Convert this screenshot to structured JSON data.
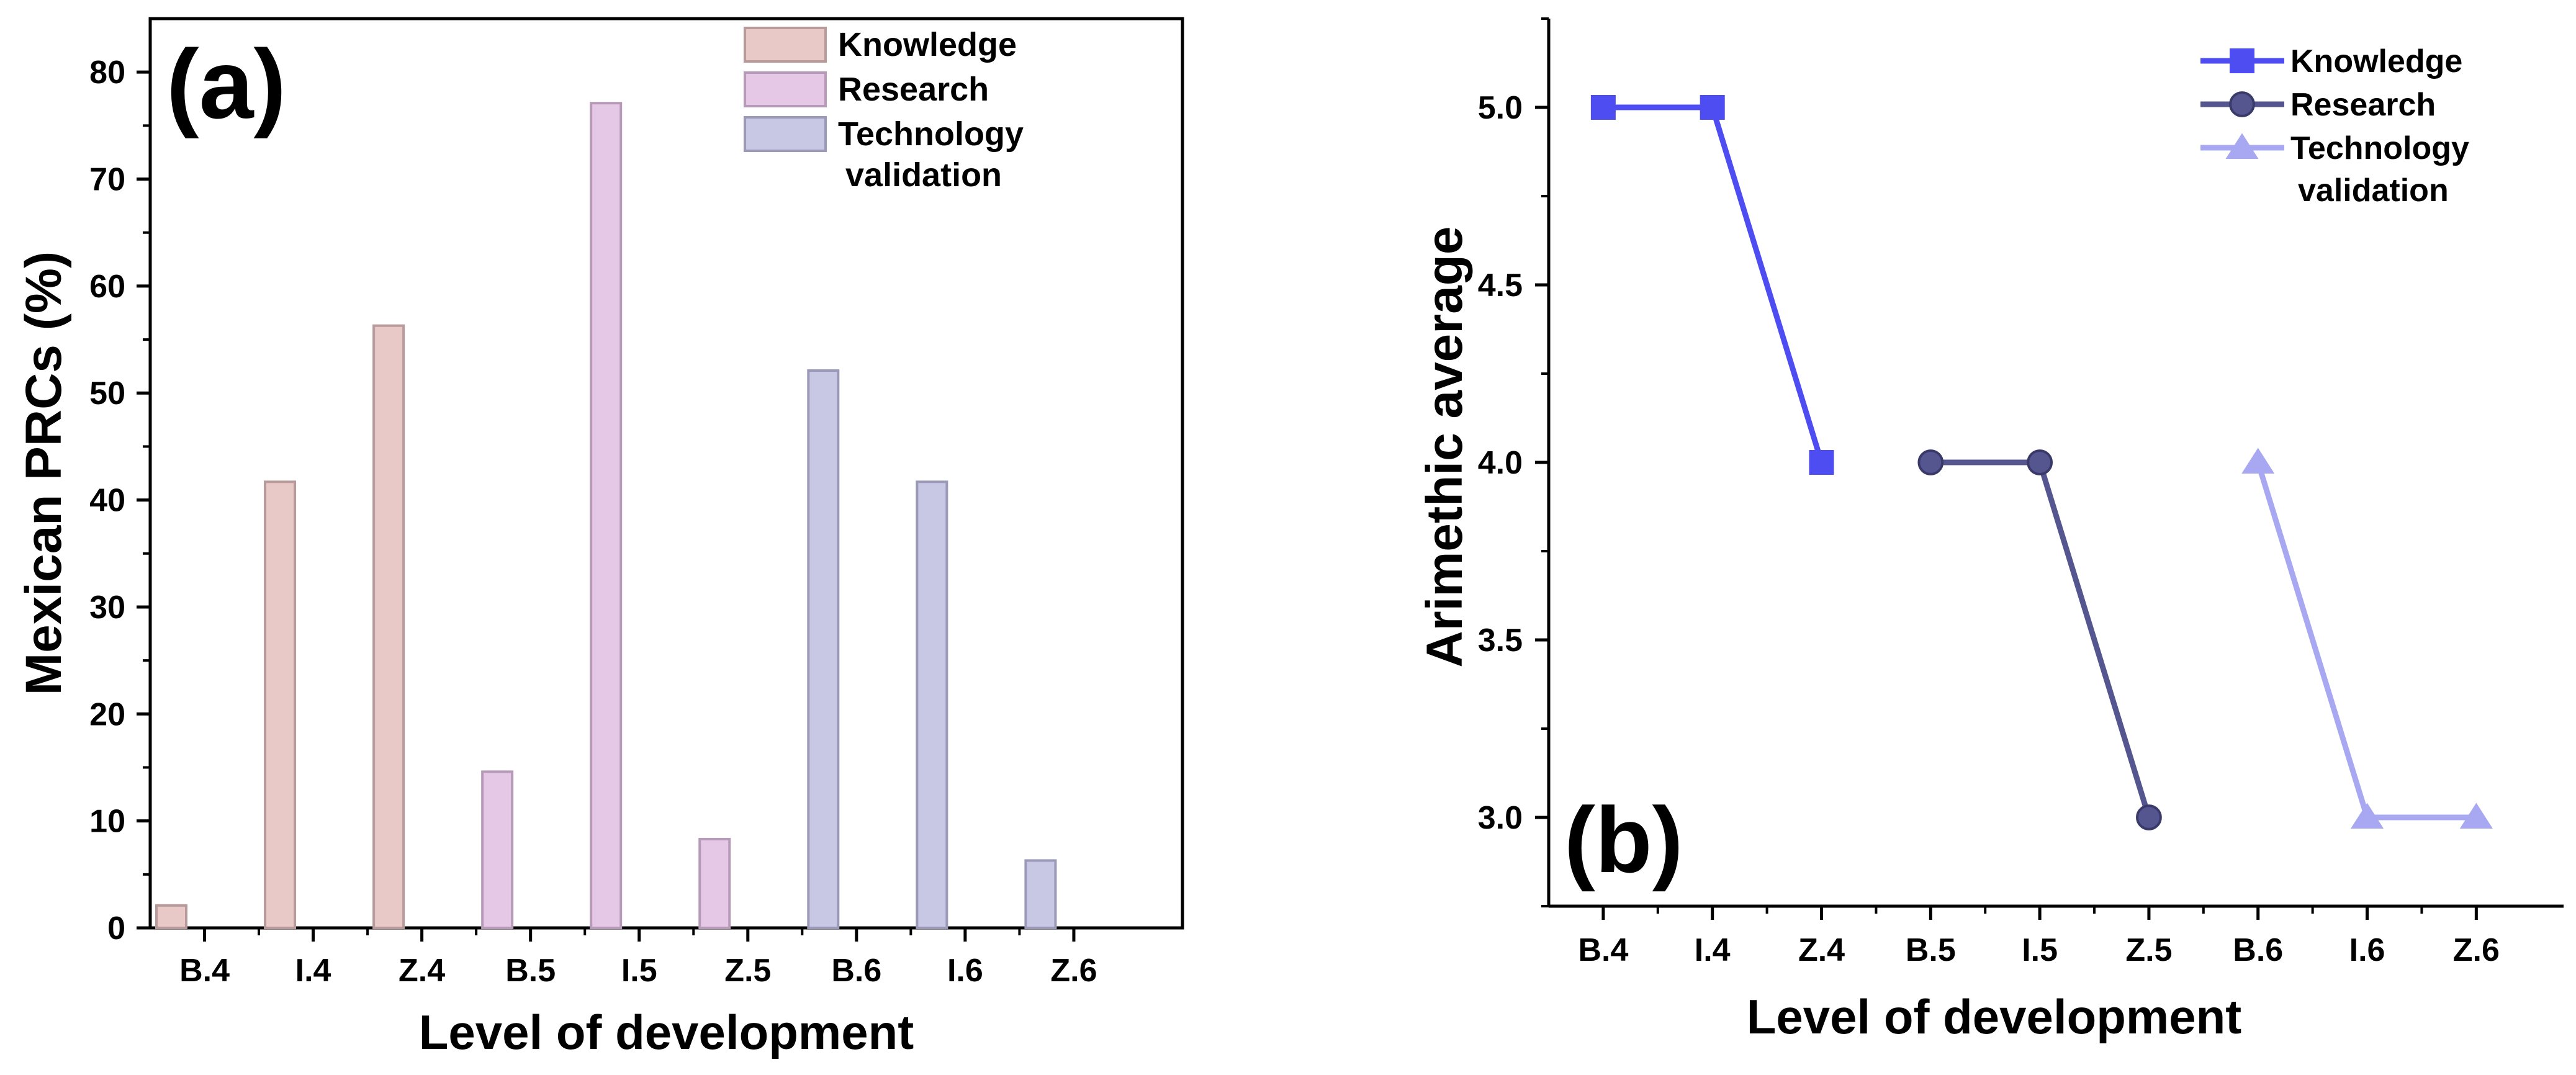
{
  "charts": [
    {
      "type": "bar",
      "panel_label": "(a)",
      "xlabel": "Level of development",
      "ylabel": "Mexican PRCs (%)",
      "categories": [
        "B.4",
        "I.4",
        "Z.4",
        "B.5",
        "I.5",
        "Z.5",
        "B.6",
        "I.6",
        "Z.6"
      ],
      "ylim": [
        0,
        85
      ],
      "yticks": [
        0,
        10,
        20,
        30,
        40,
        50,
        60,
        70,
        80
      ],
      "legend_position": "top-right",
      "series": [
        {
          "name": "Knowledge",
          "color": "#e8c9c8",
          "stroke": "#b89a9a",
          "values": [
            2.1,
            41.7,
            56.3,
            null,
            null,
            null,
            null,
            null,
            null
          ]
        },
        {
          "name": "Research",
          "color": "#e5c8e6",
          "stroke": "#b79ab8",
          "values": [
            null,
            null,
            null,
            14.6,
            77.1,
            8.3,
            null,
            null,
            null
          ]
        },
        {
          "name": "Technology\nvalidation",
          "color": "#c8c8e4",
          "stroke": "#9a9ab8",
          "values": [
            null,
            null,
            null,
            null,
            null,
            null,
            52.1,
            41.7,
            6.3
          ]
        }
      ]
    },
    {
      "type": "line",
      "panel_label": "(b)",
      "xlabel": "Level of development",
      "ylabel": "Arimethic average",
      "categories": [
        "B.4",
        "I.4",
        "Z.4",
        "B.5",
        "I.5",
        "Z.5",
        "B.6",
        "I.6",
        "Z.6"
      ],
      "ylim": [
        2.75,
        5.25
      ],
      "yticks": [
        3.0,
        3.5,
        4.0,
        4.5,
        5.0
      ],
      "legend_position": "top-right",
      "series": [
        {
          "name": "Knowledge",
          "marker": "square",
          "color": "#4d4df2",
          "values": [
            5.0,
            5.0,
            4.0,
            null,
            null,
            null,
            null,
            null,
            null
          ]
        },
        {
          "name": "Research",
          "marker": "circle",
          "color": "#55558f",
          "values": [
            null,
            null,
            null,
            4.0,
            4.0,
            3.0,
            null,
            null,
            null
          ]
        },
        {
          "name": "Technology\nvalidation",
          "marker": "triangle",
          "color": "#a8a8f2",
          "values": [
            null,
            null,
            null,
            null,
            null,
            null,
            4.0,
            3.0,
            3.0
          ]
        }
      ]
    }
  ]
}
